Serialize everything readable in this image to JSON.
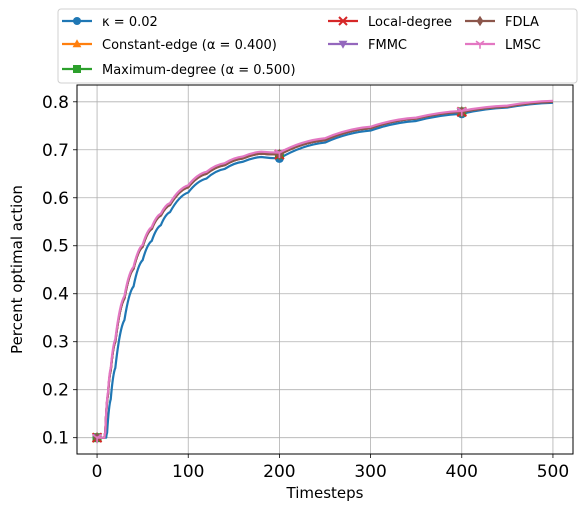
{
  "chart_data": {
    "type": "line",
    "title": "",
    "xlabel": "Timesteps",
    "ylabel": "Percent optimal action",
    "xlim": [
      -22,
      522
    ],
    "ylim": [
      0.066,
      0.835
    ],
    "xticks": [
      0,
      100,
      200,
      300,
      400,
      500
    ],
    "yticks": [
      0.1,
      0.2,
      0.3,
      0.4,
      0.5,
      0.6,
      0.7,
      0.8
    ],
    "grid": true,
    "legend_position": "top",
    "legend_columns": 3,
    "marker_x": [
      0,
      200,
      400
    ],
    "series": [
      {
        "name": "κ = 0.02",
        "color": "#1f77b4",
        "marker": "circle",
        "x": [
          0,
          10,
          11,
          15,
          20,
          30,
          40,
          50,
          60,
          70,
          80,
          100,
          120,
          140,
          160,
          180,
          200,
          250,
          300,
          350,
          400,
          450,
          500
        ],
        "y": [
          0.1,
          0.1,
          0.11,
          0.18,
          0.245,
          0.345,
          0.415,
          0.47,
          0.51,
          0.543,
          0.57,
          0.611,
          0.64,
          0.66,
          0.675,
          0.685,
          0.682,
          0.715,
          0.74,
          0.76,
          0.775,
          0.788,
          0.798
        ]
      },
      {
        "name": "Constant-edge (α = 0.400)",
        "color": "#ff7f0e",
        "marker": "triangle-up",
        "x": [
          0,
          8,
          9,
          12,
          15,
          20,
          30,
          40,
          50,
          60,
          70,
          80,
          100,
          120,
          140,
          160,
          180,
          200,
          250,
          300,
          350,
          400,
          450,
          500
        ],
        "y": [
          0.1,
          0.1,
          0.11,
          0.19,
          0.24,
          0.3,
          0.39,
          0.452,
          0.498,
          0.535,
          0.563,
          0.585,
          0.622,
          0.65,
          0.668,
          0.682,
          0.692,
          0.69,
          0.72,
          0.745,
          0.765,
          0.779,
          0.79,
          0.8
        ]
      },
      {
        "name": "Maximum-degree (α = 0.500)",
        "color": "#2ca02c",
        "marker": "square",
        "x": [
          0,
          8,
          9,
          12,
          15,
          20,
          30,
          40,
          50,
          60,
          70,
          80,
          100,
          120,
          140,
          160,
          180,
          200,
          250,
          300,
          350,
          400,
          450,
          500
        ],
        "y": [
          0.1,
          0.1,
          0.11,
          0.19,
          0.24,
          0.3,
          0.39,
          0.452,
          0.498,
          0.535,
          0.563,
          0.585,
          0.622,
          0.65,
          0.668,
          0.682,
          0.692,
          0.69,
          0.72,
          0.745,
          0.765,
          0.779,
          0.79,
          0.8
        ]
      },
      {
        "name": "Local-degree",
        "color": "#d62728",
        "marker": "x",
        "x": [
          0,
          8,
          9,
          12,
          15,
          20,
          30,
          40,
          50,
          60,
          70,
          80,
          100,
          120,
          140,
          160,
          180,
          200,
          250,
          300,
          350,
          400,
          450,
          500
        ],
        "y": [
          0.1,
          0.1,
          0.11,
          0.19,
          0.24,
          0.3,
          0.39,
          0.452,
          0.498,
          0.535,
          0.563,
          0.585,
          0.622,
          0.65,
          0.668,
          0.682,
          0.692,
          0.69,
          0.72,
          0.745,
          0.765,
          0.779,
          0.79,
          0.8
        ]
      },
      {
        "name": "FMMC",
        "color": "#9467bd",
        "marker": "triangle-down",
        "x": [
          0,
          8,
          9,
          12,
          15,
          20,
          30,
          40,
          50,
          60,
          70,
          80,
          100,
          120,
          140,
          160,
          180,
          200,
          250,
          300,
          350,
          400,
          450,
          500
        ],
        "y": [
          0.1,
          0.1,
          0.11,
          0.19,
          0.24,
          0.3,
          0.39,
          0.452,
          0.498,
          0.535,
          0.563,
          0.585,
          0.622,
          0.65,
          0.668,
          0.682,
          0.692,
          0.69,
          0.72,
          0.745,
          0.765,
          0.779,
          0.79,
          0.8
        ]
      },
      {
        "name": "FDLA",
        "color": "#8c564b",
        "marker": "diamond",
        "x": [
          0,
          8,
          9,
          12,
          15,
          20,
          30,
          40,
          50,
          60,
          70,
          80,
          100,
          120,
          140,
          160,
          180,
          200,
          250,
          300,
          350,
          400,
          450,
          500
        ],
        "y": [
          0.1,
          0.1,
          0.11,
          0.19,
          0.24,
          0.3,
          0.39,
          0.452,
          0.498,
          0.535,
          0.563,
          0.585,
          0.622,
          0.65,
          0.668,
          0.682,
          0.692,
          0.69,
          0.72,
          0.745,
          0.765,
          0.779,
          0.79,
          0.8
        ]
      },
      {
        "name": "LMSC",
        "color": "#e377c2",
        "marker": "tri-down",
        "x": [
          0,
          8,
          9,
          12,
          15,
          20,
          30,
          40,
          50,
          60,
          70,
          80,
          100,
          120,
          140,
          160,
          180,
          200,
          250,
          300,
          350,
          400,
          450,
          500
        ],
        "y": [
          0.1,
          0.1,
          0.11,
          0.195,
          0.245,
          0.305,
          0.395,
          0.456,
          0.502,
          0.539,
          0.567,
          0.589,
          0.626,
          0.654,
          0.672,
          0.686,
          0.696,
          0.694,
          0.724,
          0.748,
          0.767,
          0.781,
          0.792,
          0.802
        ]
      }
    ]
  }
}
